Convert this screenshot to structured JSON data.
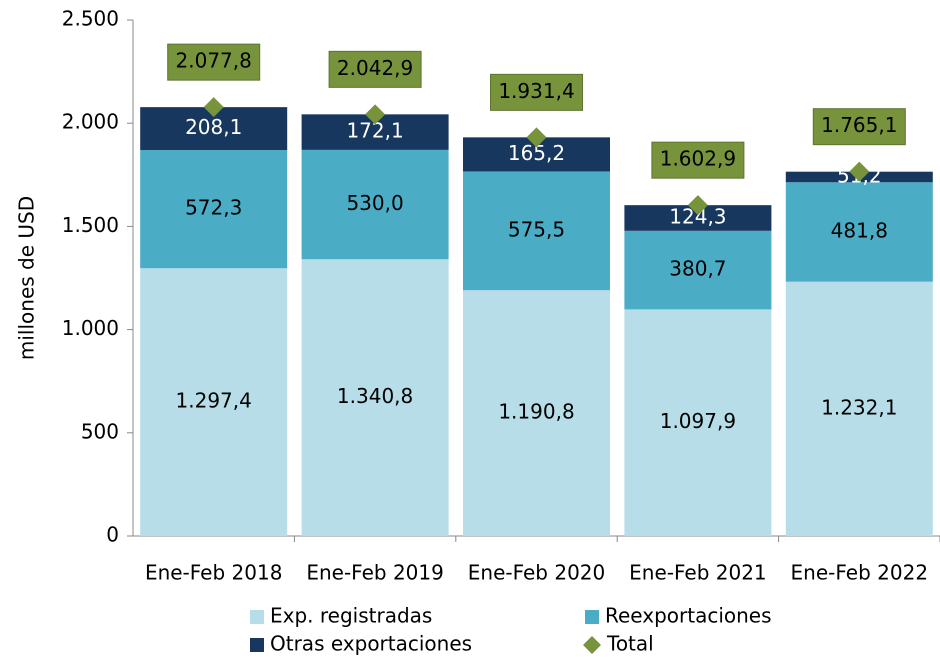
{
  "chart_data": {
    "type": "stacked-bar",
    "y_label": "millones de USD",
    "categories": [
      "Ene-Feb 2018",
      "Ene-Feb 2019",
      "Ene-Feb 2020",
      "Ene-Feb 2021",
      "Ene-Feb 2022"
    ],
    "series": [
      {
        "name": "Exp. registradas",
        "color": "#b7dde8",
        "label_color": "#000000",
        "values": [
          1297.4,
          1340.8,
          1190.8,
          1097.9,
          1232.1
        ],
        "value_labels": [
          "1.297,4",
          "1.340,8",
          "1.190,8",
          "1.097,9",
          "1.232,1"
        ]
      },
      {
        "name": "Reexportaciones",
        "color": "#4bacc6",
        "label_color": "#000000",
        "values": [
          572.3,
          530.0,
          575.5,
          380.7,
          481.8
        ],
        "value_labels": [
          "572,3",
          "530,0",
          "575,5",
          "380,7",
          "481,8"
        ]
      },
      {
        "name": "Otras exportaciones",
        "color": "#17375e",
        "label_color": "#ffffff",
        "values": [
          208.1,
          172.1,
          165.2,
          124.3,
          51.2
        ],
        "value_labels": [
          "208,1",
          "172,1",
          "165,2",
          "124,3",
          "51,2"
        ]
      }
    ],
    "total": {
      "name": "Total",
      "color": "#77933c",
      "values": [
        2077.8,
        2042.9,
        1931.4,
        1602.9,
        1765.1
      ],
      "value_labels": [
        "2.077,8",
        "2.042,9",
        "1.931,4",
        "1.602,9",
        "1.765,1"
      ]
    },
    "ylim": [
      0,
      2500
    ],
    "yticks": [
      0,
      500,
      {
        "value": 1000,
        "label": "1.000"
      },
      {
        "value": 1500,
        "label": "1.500"
      },
      {
        "value": 2000,
        "label": "2.000"
      },
      {
        "value": 2500,
        "label": "2.500"
      }
    ],
    "grid": false
  }
}
